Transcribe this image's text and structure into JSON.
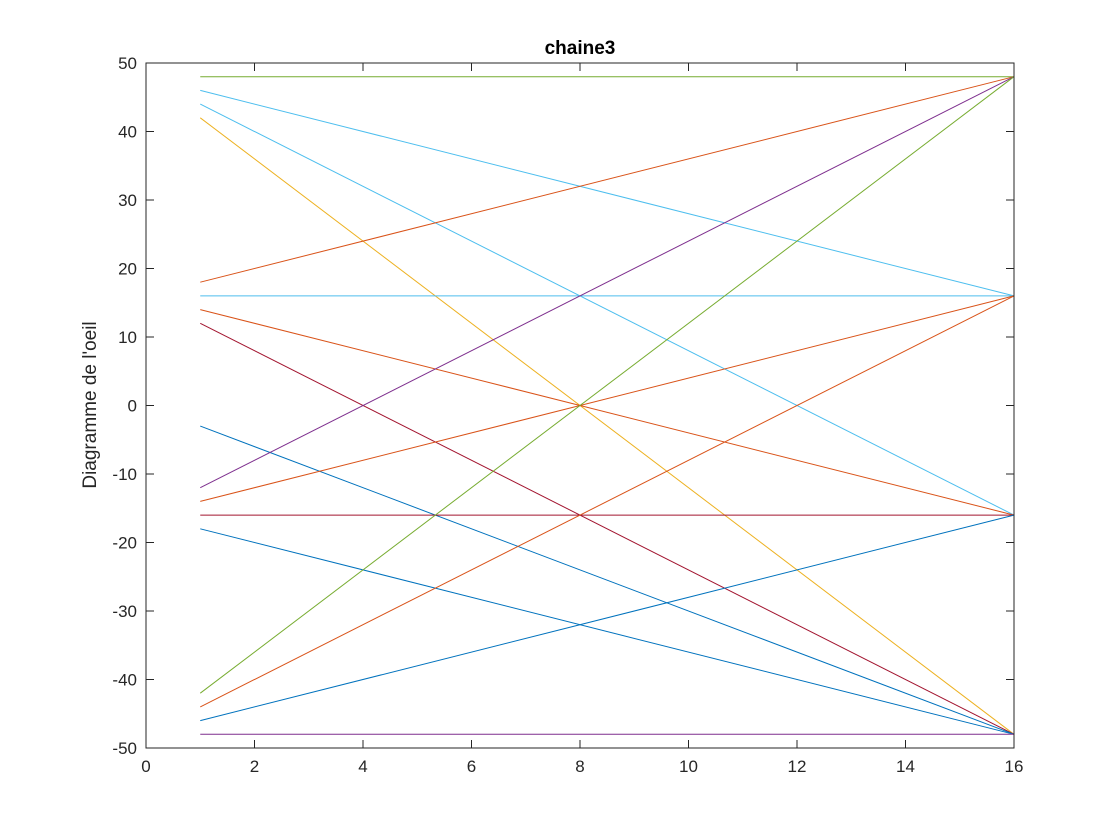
{
  "chart_data": {
    "type": "line",
    "title": "chaine3",
    "xlabel": "",
    "ylabel": "Diagramme de l'oeil",
    "xlim": [
      0,
      16
    ],
    "ylim": [
      -50,
      50
    ],
    "xticks": [
      0,
      2,
      4,
      6,
      8,
      10,
      12,
      14,
      16
    ],
    "yticks": [
      50,
      40,
      30,
      20,
      10,
      0,
      -10,
      -20,
      -30,
      -40,
      -50
    ],
    "xtick_labels": [
      "0",
      "2",
      "4",
      "6",
      "8",
      "10",
      "12",
      "14",
      "16"
    ],
    "ytick_labels": [
      "50",
      "40",
      "30",
      "20",
      "10",
      "0",
      "-10",
      "-20",
      "-30",
      "-40",
      "-50"
    ],
    "grid": false,
    "legend": "none",
    "series": [
      {
        "color": "#77AC30",
        "x": [
          1,
          16
        ],
        "y": [
          48,
          48
        ]
      },
      {
        "color": "#4DBEEE",
        "x": [
          1,
          16
        ],
        "y": [
          46,
          16
        ]
      },
      {
        "color": "#4DBEEE",
        "x": [
          1,
          16
        ],
        "y": [
          44,
          -16
        ]
      },
      {
        "color": "#EDB120",
        "x": [
          1,
          16
        ],
        "y": [
          42,
          -48
        ]
      },
      {
        "color": "#D95319",
        "x": [
          1,
          16
        ],
        "y": [
          18,
          48
        ]
      },
      {
        "color": "#4DBEEE",
        "x": [
          1,
          16
        ],
        "y": [
          16,
          16
        ]
      },
      {
        "color": "#D95319",
        "x": [
          1,
          16
        ],
        "y": [
          14,
          -16
        ]
      },
      {
        "color": "#A2142F",
        "x": [
          1,
          16
        ],
        "y": [
          12,
          -48
        ]
      },
      {
        "color": "#0072BD",
        "x": [
          1,
          16
        ],
        "y": [
          -3,
          -48
        ]
      },
      {
        "color": "#7E2F8E",
        "x": [
          1,
          16
        ],
        "y": [
          -12,
          48
        ]
      },
      {
        "color": "#D95319",
        "x": [
          1,
          16
        ],
        "y": [
          -14,
          16
        ]
      },
      {
        "color": "#A2142F",
        "x": [
          1,
          16
        ],
        "y": [
          -16,
          -16
        ]
      },
      {
        "color": "#0072BD",
        "x": [
          1,
          16
        ],
        "y": [
          -18,
          -48
        ]
      },
      {
        "color": "#77AC30",
        "x": [
          1,
          16
        ],
        "y": [
          -42,
          48
        ]
      },
      {
        "color": "#D95319",
        "x": [
          1,
          16
        ],
        "y": [
          -44,
          16
        ]
      },
      {
        "color": "#0072BD",
        "x": [
          1,
          16
        ],
        "y": [
          -46,
          -16
        ]
      },
      {
        "color": "#7E2F8E",
        "x": [
          1,
          16
        ],
        "y": [
          -48,
          -48
        ]
      }
    ]
  }
}
